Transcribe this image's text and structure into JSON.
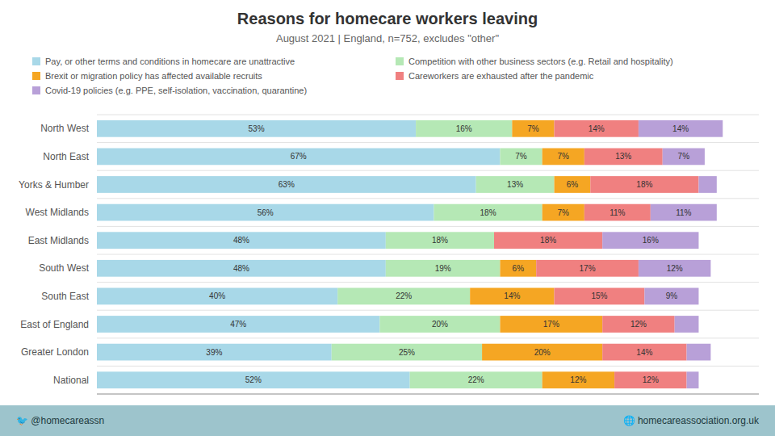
{
  "chart_data": {
    "type": "bar",
    "orientation": "horizontal",
    "stacked": true,
    "data_labels": true,
    "tick_labels": "y",
    "title": "Reasons for homecare workers leaving",
    "subtitle": "August 2021 | England, n=752, excludes \"other\"",
    "annotations": [
      "🐦 @homecareassn",
      "🌐 homecareassociation.org.uk"
    ],
    "categories": [
      "North West",
      "North East",
      "Yorks & Humber",
      "West Midlands",
      "East Midlands",
      "South West",
      "South East",
      "East of England",
      "Greater London",
      "National"
    ],
    "xlim": [
      0,
      110
    ],
    "series": [
      {
        "name": "Pay, or other terms and conditions in homecare are unattractive",
        "color": "#a8d8e8",
        "values": [
          53,
          67,
          63,
          56,
          48,
          48,
          40,
          47,
          39,
          52
        ],
        "value_labels": [
          "53%",
          "67%",
          "63%",
          "56%",
          "48%",
          "48%",
          "40%",
          "47%",
          "39%",
          "52%"
        ]
      },
      {
        "name": "Competition with other business sectors (e.g. Retail and hospitality)",
        "color": "#b5e8b5",
        "values": [
          16,
          7,
          13,
          18,
          18,
          19,
          22,
          20,
          25,
          22
        ],
        "value_labels": [
          "16%",
          "7%",
          "13%",
          "18%",
          "18%",
          "19%",
          "22%",
          "20%",
          "25%",
          "22%"
        ]
      },
      {
        "name": "Brexit or migration policy has affected available recruits",
        "color": "#f5a623",
        "values": [
          7,
          7,
          6,
          7,
          0,
          6,
          14,
          17,
          20,
          12
        ],
        "value_labels": [
          "7%",
          "7%",
          "6%",
          "7%",
          null,
          "6%",
          "14%",
          "17%",
          "20%",
          "12%"
        ]
      },
      {
        "name": "Careworkers are exhausted after the pandemic",
        "color": "#f08080",
        "values": [
          14,
          13,
          18,
          11,
          18,
          17,
          15,
          12,
          14,
          12
        ],
        "value_labels": [
          "14%",
          "13%",
          "18%",
          "11%",
          "18%",
          "17%",
          "15%",
          "12%",
          "14%",
          "12%"
        ]
      },
      {
        "name": "Covid-19 policies (e.g. PPE, self-isolation, vaccination, quarantine)",
        "color": "#b8a0d8",
        "values": [
          14,
          7,
          3,
          11,
          16,
          12,
          9,
          4,
          4,
          2
        ],
        "value_labels": [
          "14%",
          "7%",
          null,
          "11%",
          "16%",
          "12%",
          "9%",
          null,
          null,
          null
        ]
      }
    ]
  }
}
